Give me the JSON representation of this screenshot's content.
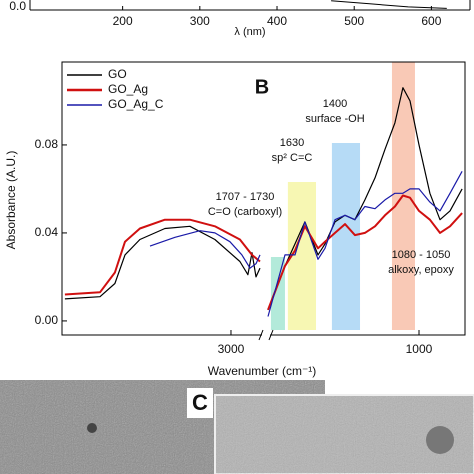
{
  "chart_data": [
    {
      "type": "line",
      "xlabel": "λ (nm)",
      "xlim": [
        80,
        650
      ],
      "xticks": [
        200,
        300,
        400,
        500,
        600
      ],
      "ylim": [
        0,
        1
      ],
      "yticks": [
        {
          "value": 0,
          "label": "0.0"
        }
      ],
      "series": [
        {
          "color": "#000000",
          "x": [
            470,
            520,
            570,
            620
          ],
          "values": [
            0.03,
            0.02,
            0.01,
            0.005
          ]
        }
      ]
    },
    {
      "type": "line",
      "panel_label": "B",
      "xlabel": "Wavenumber (cm⁻¹)",
      "ylabel": "Absorbance (A.U.)",
      "xlim": [
        3926,
        748
      ],
      "xbreak": [
        2830,
        1816
      ],
      "xticks": [
        3000,
        1000
      ],
      "ylim": [
        -0.0064,
        0.1177
      ],
      "yticks": [
        {
          "value": 0,
          "label": "0.00"
        },
        {
          "value": 0.04,
          "label": "0.04"
        },
        {
          "value": 0.08,
          "label": "0.08"
        }
      ],
      "bands": [
        {
          "from": 1811,
          "to": 1734,
          "color": "#a6e6d3"
        },
        {
          "from": 1718,
          "to": 1564,
          "color": "#f6f6a6"
        },
        {
          "from": 1477,
          "to": 1323,
          "color": "#a9d5f5"
        },
        {
          "from": 1148,
          "to": 1022,
          "color": "#f8bfa9"
        }
      ],
      "annotations": [
        [
          "1707 - 1730",
          "C=O (carboxyl)"
        ],
        [
          "1630",
          "sp² C=C"
        ],
        [
          "1400",
          "surface -OH"
        ],
        [
          "1080 - 1050",
          "alkoxy, epoxy"
        ]
      ],
      "series": [
        {
          "name": "GO",
          "color": "#000000",
          "x": [
            3910,
            3718,
            3636,
            3581,
            3499,
            3362,
            3225,
            3088,
            2951,
            2907,
            2885,
            2863,
            2841,
            null,
            1827,
            1734,
            1679,
            1625,
            1553,
            1515,
            1460,
            1405,
            1351,
            1296,
            1241,
            1186,
            1132,
            1088,
            1049,
            1000,
            940,
            885,
            830,
            764
          ],
          "values": [
            0.01,
            0.011,
            0.017,
            0.03,
            0.037,
            0.042,
            0.043,
            0.037,
            0.027,
            0.021,
            0.031,
            0.02,
            0.024,
            null,
            0.005,
            0.025,
            0.035,
            0.045,
            0.03,
            0.035,
            0.045,
            0.048,
            0.046,
            0.055,
            0.065,
            0.078,
            0.09,
            0.106,
            0.1,
            0.08,
            0.058,
            0.046,
            0.05,
            0.06
          ]
        },
        {
          "name": "GO_Ag",
          "color": "#d01010",
          "x": [
            3910,
            3718,
            3636,
            3581,
            3499,
            3362,
            3225,
            3088,
            2951,
            2885,
            2841,
            null,
            1827,
            1734,
            1679,
            1625,
            1553,
            1515,
            1460,
            1405,
            1351,
            1296,
            1241,
            1186,
            1132,
            1088,
            1049,
            1000,
            940,
            885,
            830,
            764
          ],
          "values": [
            0.012,
            0.013,
            0.022,
            0.036,
            0.042,
            0.046,
            0.046,
            0.043,
            0.037,
            0.03,
            0.027,
            null,
            0.005,
            0.025,
            0.032,
            0.043,
            0.033,
            0.036,
            0.04,
            0.044,
            0.039,
            0.04,
            0.043,
            0.048,
            0.052,
            0.057,
            0.056,
            0.05,
            0.046,
            0.04,
            0.043,
            0.049
          ]
        },
        {
          "name": "GO_Ag_C",
          "color": "#1a1aa8",
          "x": [
            3444,
            3307,
            3170,
            3088,
            3006,
            2940,
            2896,
            2863,
            2841,
            null,
            1827,
            1734,
            1679,
            1625,
            1553,
            1515,
            1460,
            1405,
            1351,
            1296,
            1241,
            1186,
            1132,
            1088,
            1049,
            1000,
            940,
            885,
            830,
            764
          ],
          "values": [
            0.034,
            0.038,
            0.041,
            0.04,
            0.036,
            0.03,
            0.024,
            0.026,
            0.03,
            null,
            0.002,
            0.03,
            0.03,
            0.045,
            0.028,
            0.033,
            0.046,
            0.048,
            0.046,
            0.052,
            0.051,
            0.055,
            0.058,
            0.058,
            0.06,
            0.06,
            0.054,
            0.05,
            0.058,
            0.068
          ]
        }
      ]
    }
  ],
  "panel_c": {
    "label": "C"
  }
}
